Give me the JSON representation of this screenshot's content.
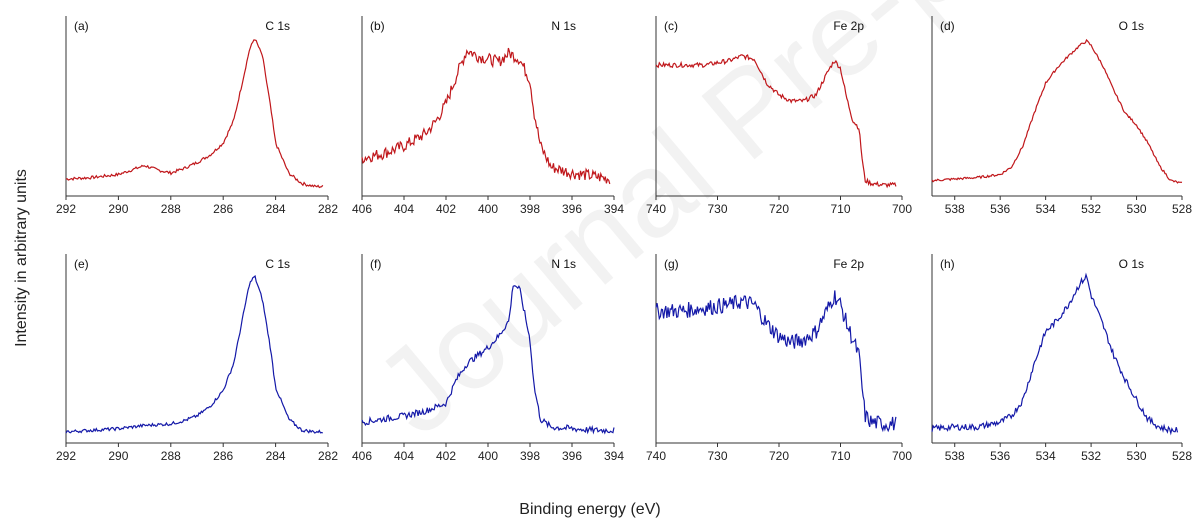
{
  "watermark": "Journal Pre-proof",
  "ylabel": "Intensity in arbitrary units",
  "xlabel": "Binding energy (eV)",
  "colors": {
    "row1": "#c0171b",
    "row2": "#1419a8",
    "axis": "#333333"
  },
  "chart_data": [
    {
      "type": "line",
      "panel": "(a)",
      "element": "C 1s",
      "row": 1,
      "xlim": [
        292,
        282
      ],
      "ticks": [
        292,
        290,
        288,
        286,
        284,
        282
      ],
      "x": [
        292,
        291,
        290,
        289.5,
        289,
        288.5,
        288,
        287.5,
        287,
        286.5,
        286,
        285.6,
        285.3,
        285,
        284.8,
        284.5,
        284.2,
        284,
        283.5,
        283,
        282.5,
        282.2
      ],
      "y": [
        0.06,
        0.07,
        0.09,
        0.12,
        0.15,
        0.12,
        0.1,
        0.13,
        0.17,
        0.22,
        0.3,
        0.45,
        0.68,
        0.92,
        1.0,
        0.88,
        0.55,
        0.3,
        0.1,
        0.03,
        0.01,
        0.01
      ],
      "noise": 0.01
    },
    {
      "type": "line",
      "panel": "(b)",
      "element": "N 1s",
      "row": 1,
      "xlim": [
        406,
        394
      ],
      "ticks": [
        406,
        404,
        402,
        400,
        398,
        396,
        394
      ],
      "x": [
        406,
        405,
        404,
        403,
        402.5,
        402,
        401.5,
        401,
        400.5,
        400,
        399.5,
        399,
        398.5,
        398,
        397.8,
        397.5,
        397,
        396,
        395,
        394.2
      ],
      "y": [
        0.2,
        0.23,
        0.28,
        0.36,
        0.44,
        0.56,
        0.75,
        0.92,
        0.88,
        0.86,
        0.84,
        0.9,
        0.86,
        0.72,
        0.5,
        0.28,
        0.14,
        0.1,
        0.08,
        0.06
      ],
      "noise": 0.04
    },
    {
      "type": "line",
      "panel": "(c)",
      "element": "Fe 2p",
      "row": 1,
      "xlim": [
        740,
        700
      ],
      "ticks": [
        740,
        730,
        720,
        710,
        700
      ],
      "x": [
        740,
        736,
        732,
        728,
        726,
        724,
        722,
        720,
        718,
        716,
        714,
        712,
        711,
        710,
        709,
        708,
        707,
        706.5,
        706,
        705,
        703,
        701
      ],
      "y": [
        0.82,
        0.82,
        0.82,
        0.85,
        0.88,
        0.86,
        0.7,
        0.62,
        0.58,
        0.58,
        0.62,
        0.78,
        0.85,
        0.8,
        0.6,
        0.45,
        0.4,
        0.2,
        0.05,
        0.03,
        0.02,
        0.02
      ],
      "noise": 0.015
    },
    {
      "type": "line",
      "panel": "(d)",
      "element": "O 1s",
      "row": 1,
      "xlim": [
        539,
        528
      ],
      "ticks": [
        538,
        536,
        534,
        532,
        530,
        528
      ],
      "x": [
        539,
        538,
        537,
        536,
        535.5,
        535,
        534.5,
        534,
        533.5,
        533,
        532.5,
        532.2,
        532,
        531.5,
        531,
        530.5,
        530,
        529.5,
        529,
        528.5,
        528
      ],
      "y": [
        0.05,
        0.06,
        0.07,
        0.09,
        0.14,
        0.28,
        0.5,
        0.7,
        0.8,
        0.88,
        0.95,
        0.98,
        0.95,
        0.82,
        0.65,
        0.5,
        0.42,
        0.3,
        0.15,
        0.05,
        0.03
      ],
      "noise": 0.008
    },
    {
      "type": "line",
      "panel": "(e)",
      "element": "C 1s",
      "row": 2,
      "xlim": [
        292,
        282
      ],
      "ticks": [
        292,
        290,
        288,
        286,
        284,
        282
      ],
      "x": [
        292,
        291,
        290,
        289,
        288,
        287.5,
        287,
        286.5,
        286,
        285.6,
        285.3,
        285,
        284.8,
        284.5,
        284.2,
        284,
        283.5,
        283,
        282.5,
        282.2
      ],
      "y": [
        0.02,
        0.03,
        0.04,
        0.06,
        0.07,
        0.09,
        0.12,
        0.18,
        0.28,
        0.45,
        0.7,
        0.95,
        1.0,
        0.85,
        0.55,
        0.3,
        0.1,
        0.03,
        0.02,
        0.02
      ],
      "noise": 0.01
    },
    {
      "type": "line",
      "panel": "(f)",
      "element": "N 1s",
      "row": 2,
      "xlim": [
        406,
        394
      ],
      "ticks": [
        406,
        404,
        402,
        400,
        398,
        396,
        394
      ],
      "x": [
        406,
        405,
        404,
        403,
        402,
        401.5,
        401,
        400.5,
        400,
        399.5,
        399,
        398.8,
        398.5,
        398,
        397.8,
        397.5,
        397,
        396,
        395,
        394
      ],
      "y": [
        0.08,
        0.1,
        0.12,
        0.15,
        0.2,
        0.35,
        0.45,
        0.5,
        0.55,
        0.62,
        0.72,
        0.95,
        0.92,
        0.6,
        0.3,
        0.1,
        0.05,
        0.04,
        0.03,
        0.03
      ],
      "noise": 0.02
    },
    {
      "type": "line",
      "panel": "(g)",
      "element": "Fe 2p",
      "row": 2,
      "xlim": [
        740,
        700
      ],
      "ticks": [
        740,
        730,
        720,
        710,
        700
      ],
      "x": [
        740,
        736,
        732,
        728,
        726,
        724,
        722,
        720,
        718,
        716,
        714,
        712,
        711,
        710,
        709,
        708,
        707,
        706.5,
        706,
        705,
        703,
        701
      ],
      "y": [
        0.78,
        0.78,
        0.8,
        0.82,
        0.84,
        0.82,
        0.7,
        0.62,
        0.58,
        0.6,
        0.65,
        0.8,
        0.88,
        0.82,
        0.7,
        0.6,
        0.5,
        0.3,
        0.12,
        0.08,
        0.07,
        0.07
      ],
      "noise": 0.05
    },
    {
      "type": "line",
      "panel": "(h)",
      "element": "O 1s",
      "row": 2,
      "xlim": [
        539,
        528
      ],
      "ticks": [
        538,
        536,
        534,
        532,
        530,
        528
      ],
      "x": [
        539,
        538,
        537,
        536,
        535.5,
        535,
        534.5,
        534,
        533.5,
        533,
        532.5,
        532.2,
        532,
        531.5,
        531,
        530.5,
        530,
        529.5,
        529,
        528.5,
        528.2
      ],
      "y": [
        0.04,
        0.05,
        0.05,
        0.08,
        0.12,
        0.22,
        0.45,
        0.65,
        0.72,
        0.82,
        0.95,
        1.0,
        0.88,
        0.7,
        0.5,
        0.35,
        0.22,
        0.1,
        0.05,
        0.03,
        0.03
      ],
      "noise": 0.02
    }
  ]
}
